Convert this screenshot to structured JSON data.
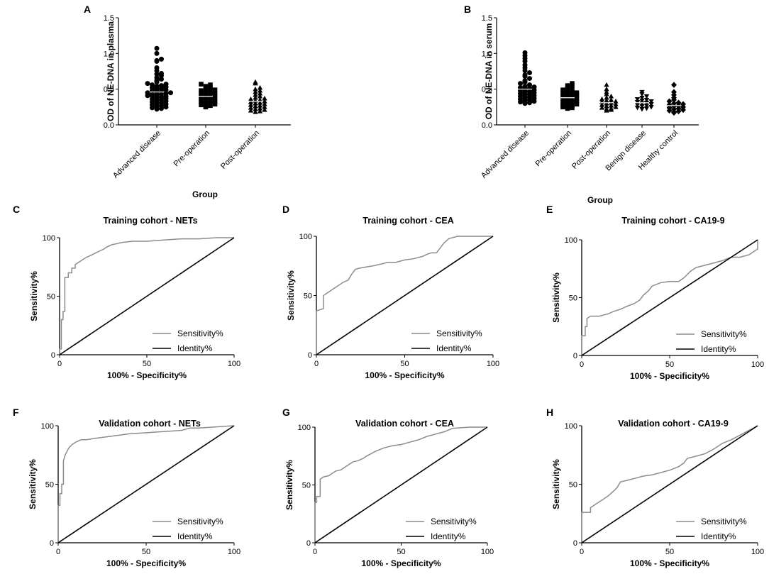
{
  "chart_data": [
    {
      "id": "A",
      "type": "scatter",
      "panel_label": "A",
      "title": "",
      "xlabel": "Group",
      "ylabel": "OD of NE-DNA in plasma",
      "ylim": [
        0,
        1.5
      ],
      "yticks": [
        "0.0",
        "0.5",
        "1.0",
        "1.5"
      ],
      "categories": [
        "Advanced disease",
        "Pre-operation",
        "Post-operation"
      ],
      "marker_names": [
        "circle",
        "square",
        "triangle"
      ],
      "groups": [
        {
          "name": "Advanced disease",
          "marker": "circle",
          "values": [
            1.07,
            1.0,
            0.92,
            0.9,
            0.89,
            0.8,
            0.76,
            0.72,
            0.71,
            0.69,
            0.66,
            0.64,
            0.62,
            0.6,
            0.58,
            0.57,
            0.56,
            0.55,
            0.54,
            0.53,
            0.52,
            0.51,
            0.5,
            0.49,
            0.48,
            0.47,
            0.46,
            0.45,
            0.45,
            0.44,
            0.43,
            0.43,
            0.42,
            0.41,
            0.4,
            0.4,
            0.39,
            0.38,
            0.37,
            0.36,
            0.35,
            0.34,
            0.33,
            0.32,
            0.31,
            0.3,
            0.29,
            0.28,
            0.27,
            0.26,
            0.25,
            0.24,
            0.23,
            0.22
          ]
        },
        {
          "name": "Pre-operation",
          "marker": "square",
          "values": [
            0.57,
            0.56,
            0.54,
            0.52,
            0.5,
            0.49,
            0.48,
            0.47,
            0.46,
            0.45,
            0.44,
            0.43,
            0.42,
            0.41,
            0.4,
            0.39,
            0.38,
            0.37,
            0.36,
            0.35,
            0.34,
            0.33,
            0.32,
            0.31,
            0.3,
            0.29,
            0.28,
            0.27,
            0.26,
            0.25
          ]
        },
        {
          "name": "Post-operation",
          "marker": "triangle",
          "values": [
            0.6,
            0.58,
            0.52,
            0.5,
            0.48,
            0.46,
            0.44,
            0.42,
            0.4,
            0.38,
            0.37,
            0.36,
            0.35,
            0.34,
            0.33,
            0.32,
            0.31,
            0.3,
            0.29,
            0.28,
            0.27,
            0.26,
            0.25,
            0.24,
            0.23,
            0.22,
            0.21,
            0.2,
            0.19,
            0.18
          ]
        }
      ]
    },
    {
      "id": "B",
      "type": "scatter",
      "panel_label": "B",
      "title": "",
      "xlabel": "Group",
      "ylabel": "OD of NE-DNA in serum",
      "ylim": [
        0,
        1.5
      ],
      "yticks": [
        "0.0",
        "0.5",
        "1.0",
        "1.5"
      ],
      "categories": [
        "Advanced disease",
        "Pre-operation",
        "Post-operation",
        "Benign disease",
        "Healthy control"
      ],
      "marker_names": [
        "circle",
        "square",
        "triangle",
        "inverted-triangle",
        "diamond"
      ],
      "groups": [
        {
          "name": "Advanced disease",
          "marker": "circle",
          "values": [
            1.01,
            0.97,
            0.93,
            0.89,
            0.84,
            0.8,
            0.76,
            0.73,
            0.7,
            0.68,
            0.65,
            0.62,
            0.6,
            0.58,
            0.56,
            0.54,
            0.53,
            0.52,
            0.51,
            0.5,
            0.49,
            0.48,
            0.47,
            0.46,
            0.45,
            0.44,
            0.43,
            0.42,
            0.41,
            0.4,
            0.39,
            0.38,
            0.37,
            0.36,
            0.35,
            0.34,
            0.33,
            0.32,
            0.31,
            0.3
          ]
        },
        {
          "name": "Pre-operation",
          "marker": "square",
          "values": [
            0.58,
            0.55,
            0.53,
            0.51,
            0.49,
            0.47,
            0.46,
            0.45,
            0.44,
            0.43,
            0.42,
            0.41,
            0.4,
            0.39,
            0.38,
            0.37,
            0.36,
            0.35,
            0.34,
            0.33,
            0.32,
            0.31,
            0.3,
            0.29,
            0.28,
            0.27,
            0.26,
            0.25,
            0.24,
            0.23
          ]
        },
        {
          "name": "Post-operation",
          "marker": "triangle",
          "values": [
            0.56,
            0.5,
            0.46,
            0.43,
            0.4,
            0.38,
            0.36,
            0.35,
            0.34,
            0.33,
            0.32,
            0.31,
            0.3,
            0.29,
            0.28,
            0.27,
            0.26,
            0.25,
            0.24,
            0.23,
            0.22,
            0.21,
            0.2
          ]
        },
        {
          "name": "Benign disease",
          "marker": "inverted-triangle",
          "values": [
            0.46,
            0.43,
            0.4,
            0.38,
            0.36,
            0.35,
            0.34,
            0.33,
            0.32,
            0.31,
            0.3,
            0.29,
            0.28,
            0.27,
            0.26,
            0.25,
            0.24,
            0.23,
            0.22
          ]
        },
        {
          "name": "Healthy control",
          "marker": "diamond",
          "values": [
            0.56,
            0.46,
            0.42,
            0.38,
            0.35,
            0.33,
            0.31,
            0.3,
            0.29,
            0.28,
            0.27,
            0.26,
            0.25,
            0.24,
            0.23,
            0.22,
            0.21,
            0.2,
            0.19,
            0.18,
            0.17
          ]
        }
      ]
    },
    {
      "id": "C",
      "type": "line",
      "panel_label": "C",
      "title": "Training cohort - NETs",
      "xlabel": "100% - Specificity%",
      "ylabel": "Sensitivity%",
      "xlim": [
        0,
        100
      ],
      "ylim": [
        0,
        100
      ],
      "xticks": [
        0,
        50,
        100
      ],
      "yticks": [
        0,
        50,
        100
      ],
      "legend": [
        "Sensitivity%",
        "Identity%"
      ],
      "legend_loc": "bottom-right",
      "series": [
        {
          "name": "Sensitivity%",
          "color": "#8c8c8c",
          "x": [
            0,
            0,
            1,
            1,
            2,
            2,
            3,
            3,
            5,
            5,
            7,
            7,
            9,
            9,
            12,
            15,
            18,
            22,
            25,
            27,
            30,
            33,
            36,
            42,
            50,
            60,
            70,
            80,
            90,
            100
          ],
          "y": [
            0,
            5,
            5,
            30,
            30,
            37,
            37,
            66,
            66,
            70,
            70,
            74,
            74,
            77,
            80,
            83,
            85,
            88,
            90,
            92,
            94,
            95,
            96,
            97,
            97,
            98,
            99,
            99,
            100,
            100
          ]
        },
        {
          "name": "Identity%",
          "color": "#000000",
          "x": [
            0,
            100
          ],
          "y": [
            0,
            100
          ]
        }
      ]
    },
    {
      "id": "D",
      "type": "line",
      "panel_label": "D",
      "title": "Training cohort - CEA",
      "xlabel": "100% - Specificity%",
      "ylabel": "Sensitivity%",
      "xlim": [
        0,
        100
      ],
      "ylim": [
        0,
        100
      ],
      "xticks": [
        0,
        50,
        100
      ],
      "yticks": [
        0,
        50,
        100
      ],
      "legend": [
        "Sensitivity%",
        "Identity%"
      ],
      "legend_loc": "bottom-right",
      "series": [
        {
          "name": "Sensitivity%",
          "color": "#8c8c8c",
          "x": [
            0,
            0,
            4,
            4,
            7,
            9,
            12,
            15,
            18,
            20,
            22,
            24,
            28,
            32,
            35,
            38,
            40,
            45,
            50,
            55,
            60,
            63,
            65,
            68,
            70,
            72,
            75,
            80,
            90,
            100
          ],
          "y": [
            0,
            37,
            39,
            50,
            53,
            55,
            58,
            61,
            63,
            68,
            72,
            73,
            74,
            75,
            76,
            77,
            78,
            78,
            80,
            81,
            83,
            85,
            86,
            86,
            90,
            94,
            98,
            100,
            100,
            100
          ]
        },
        {
          "name": "Identity%",
          "color": "#000000",
          "x": [
            0,
            100
          ],
          "y": [
            0,
            100
          ]
        }
      ]
    },
    {
      "id": "E",
      "type": "line",
      "panel_label": "E",
      "title": "Training cohort - CA19-9",
      "xlabel": "100% - Specificity%",
      "ylabel": "Sensitivity%",
      "xlim": [
        0,
        100
      ],
      "ylim": [
        0,
        100
      ],
      "xticks": [
        0,
        50,
        100
      ],
      "yticks": [
        0,
        50,
        100
      ],
      "legend": [
        "Sensitivity%",
        "Identity%"
      ],
      "legend_loc": "bottom-right",
      "series": [
        {
          "name": "Sensitivity%",
          "color": "#8c8c8c",
          "x": [
            0,
            0,
            2,
            2,
            3,
            3,
            5,
            10,
            15,
            18,
            22,
            25,
            30,
            33,
            35,
            38,
            40,
            45,
            50,
            55,
            58,
            62,
            65,
            70,
            75,
            80,
            85,
            90,
            95,
            98,
            100,
            100
          ],
          "y": [
            0,
            17,
            17,
            25,
            25,
            32,
            34,
            34,
            36,
            38,
            40,
            42,
            45,
            48,
            52,
            56,
            60,
            63,
            64,
            64,
            67,
            73,
            76,
            78,
            80,
            82,
            85,
            85,
            87,
            90,
            92,
            100
          ]
        },
        {
          "name": "Identity%",
          "color": "#000000",
          "x": [
            0,
            100
          ],
          "y": [
            0,
            100
          ]
        }
      ]
    },
    {
      "id": "F",
      "type": "line",
      "panel_label": "F",
      "title": "Validation cohort - NETs",
      "xlabel": "100% - Specificity%",
      "ylabel": "Sensitivity%",
      "xlim": [
        0,
        100
      ],
      "ylim": [
        0,
        100
      ],
      "xticks": [
        0,
        50,
        100
      ],
      "yticks": [
        0,
        50,
        100
      ],
      "legend": [
        "Sensitivity%",
        "Identity%"
      ],
      "legend_loc": "bottom-right",
      "series": [
        {
          "name": "Sensitivity%",
          "color": "#8c8c8c",
          "x": [
            0,
            0,
            1,
            1,
            2,
            2,
            3,
            3,
            4,
            5,
            6,
            8,
            10,
            13,
            16,
            20,
            25,
            30,
            35,
            40,
            50,
            60,
            70,
            75,
            80,
            90,
            100
          ],
          "y": [
            0,
            32,
            32,
            42,
            42,
            50,
            50,
            70,
            75,
            78,
            81,
            84,
            86,
            88,
            88,
            89,
            90,
            91,
            92,
            93,
            94,
            95,
            96,
            98,
            98,
            99,
            100
          ]
        },
        {
          "name": "Identity%",
          "color": "#000000",
          "x": [
            0,
            100
          ],
          "y": [
            0,
            100
          ]
        }
      ]
    },
    {
      "id": "G",
      "type": "line",
      "panel_label": "G",
      "title": "Validation cohort - CEA",
      "xlabel": "100% - Specificity%",
      "ylabel": "Sensitivity%",
      "xlim": [
        0,
        100
      ],
      "ylim": [
        0,
        100
      ],
      "xticks": [
        0,
        50,
        100
      ],
      "yticks": [
        0,
        50,
        100
      ],
      "legend": [
        "Sensitivity%",
        "Identity%"
      ],
      "legend_loc": "bottom-right",
      "series": [
        {
          "name": "Sensitivity%",
          "color": "#8c8c8c",
          "x": [
            0,
            0,
            1,
            1,
            3,
            3,
            5,
            8,
            10,
            12,
            15,
            18,
            20,
            22,
            25,
            28,
            30,
            35,
            40,
            45,
            50,
            55,
            60,
            65,
            70,
            75,
            80,
            90,
            100
          ],
          "y": [
            0,
            35,
            35,
            40,
            40,
            55,
            57,
            58,
            60,
            62,
            63,
            66,
            68,
            70,
            71,
            73,
            75,
            79,
            82,
            84,
            85,
            87,
            89,
            92,
            94,
            96,
            99,
            100,
            100
          ]
        },
        {
          "name": "Identity%",
          "color": "#000000",
          "x": [
            0,
            100
          ],
          "y": [
            0,
            100
          ]
        }
      ]
    },
    {
      "id": "H",
      "type": "line",
      "panel_label": "H",
      "title": "Validation cohort - CA19-9",
      "xlabel": "100% - Specificity%",
      "ylabel": "Sensitivity%",
      "xlim": [
        0,
        100
      ],
      "ylim": [
        0,
        100
      ],
      "xticks": [
        0,
        50,
        100
      ],
      "yticks": [
        0,
        50,
        100
      ],
      "legend": [
        "Sensitivity%",
        "Identity%"
      ],
      "legend_loc": "bottom-right",
      "series": [
        {
          "name": "Sensitivity%",
          "color": "#8c8c8c",
          "x": [
            0,
            0,
            5,
            5,
            8,
            10,
            12,
            15,
            18,
            20,
            22,
            25,
            30,
            35,
            40,
            45,
            50,
            55,
            58,
            60,
            65,
            70,
            75,
            80,
            85,
            90,
            95,
            100
          ],
          "y": [
            0,
            26,
            26,
            30,
            33,
            35,
            37,
            40,
            44,
            47,
            52,
            53,
            55,
            57,
            58,
            60,
            62,
            65,
            68,
            72,
            74,
            76,
            80,
            85,
            88,
            92,
            96,
            100
          ]
        },
        {
          "name": "Identity%",
          "color": "#000000",
          "x": [
            0,
            100
          ],
          "y": [
            0,
            100
          ]
        }
      ]
    }
  ]
}
